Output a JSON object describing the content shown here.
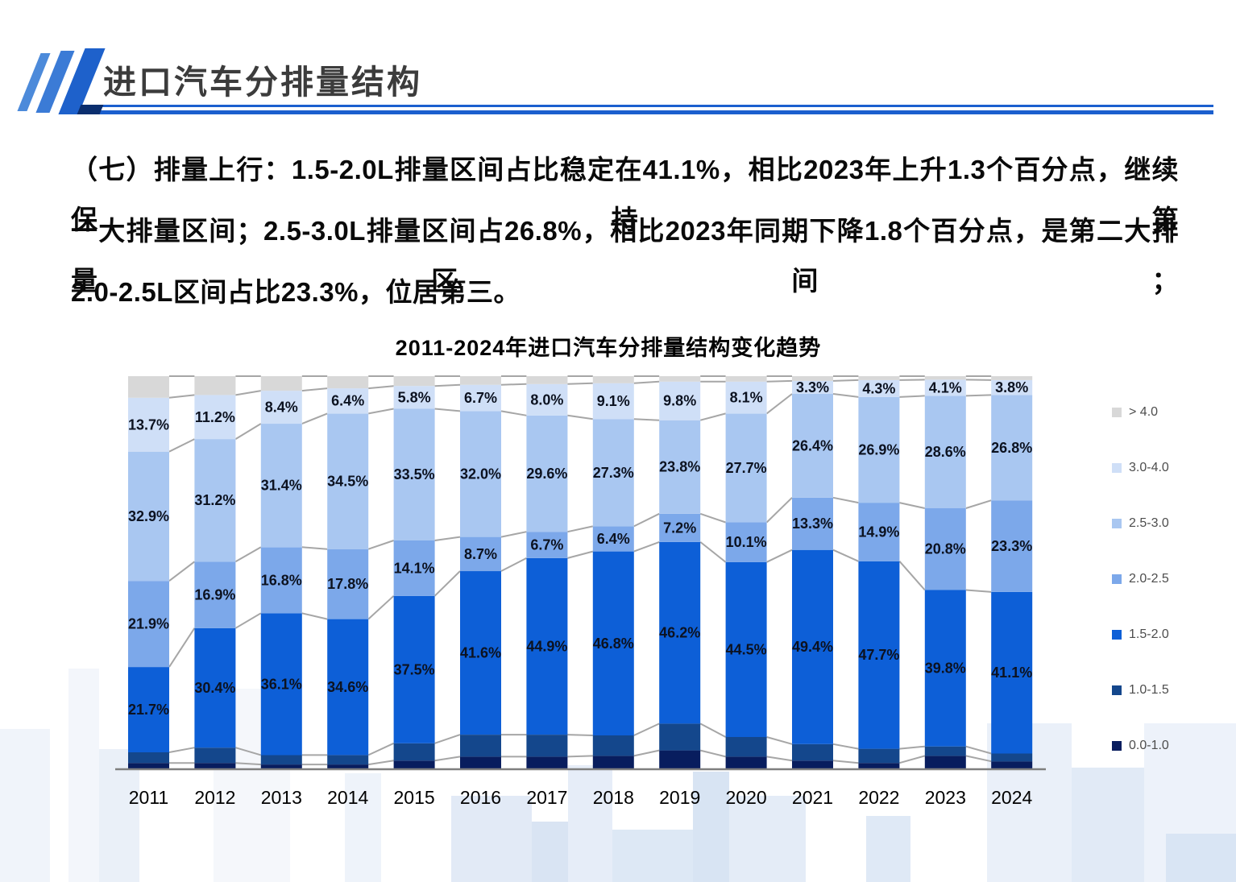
{
  "header": {
    "title": "进口汽车分排量结构"
  },
  "paragraph": {
    "lines": [
      "（七）排量上行：1.5-2.0L排量区间占比稳定在41.1%，相比2023年上升1.3个百分点，继续保持第",
      "一大排量区间；2.5-3.0L排量区间占26.8%，相比2023年同期下降1.8个百分点，是第二大排量区间；",
      "2.0-2.5L区间占比23.3%，位居第三。"
    ]
  },
  "chart_data": {
    "type": "bar",
    "stacked": true,
    "unit": "percent",
    "title": "2011-2024年进口汽车分排量结构变化趋势",
    "categories": [
      "2011",
      "2012",
      "2013",
      "2014",
      "2015",
      "2016",
      "2017",
      "2018",
      "2019",
      "2020",
      "2021",
      "2022",
      "2023",
      "2024"
    ],
    "series": [
      {
        "name": "0.0-1.0",
        "color": "#081d5e",
        "labeled": false,
        "estimated": true,
        "values": [
          1.6,
          1.6,
          1.2,
          1.2,
          2.2,
          3.2,
          3.2,
          3.4,
          4.8,
          3.2,
          2.2,
          1.6,
          3.4,
          2.0
        ]
      },
      {
        "name": "1.0-1.5",
        "color": "#14478c",
        "labeled": false,
        "estimated": true,
        "values": [
          2.7,
          3.9,
          2.4,
          2.4,
          4.4,
          5.6,
          5.6,
          5.2,
          6.8,
          5.0,
          4.2,
          3.6,
          2.4,
          2.0
        ]
      },
      {
        "name": "1.5-2.0",
        "color": "#0d5fd7",
        "labeled": true,
        "values": [
          21.7,
          30.4,
          36.1,
          34.6,
          37.5,
          41.6,
          44.9,
          46.8,
          46.2,
          44.5,
          49.4,
          47.7,
          39.8,
          41.1
        ]
      },
      {
        "name": "2.0-2.5",
        "color": "#7ca8ea",
        "labeled": true,
        "values": [
          21.9,
          16.9,
          16.8,
          17.8,
          14.1,
          8.7,
          6.7,
          6.4,
          7.2,
          10.1,
          13.3,
          14.9,
          20.8,
          23.3
        ]
      },
      {
        "name": "2.5-3.0",
        "color": "#a9c7f1",
        "labeled": true,
        "values": [
          32.9,
          31.2,
          31.4,
          34.5,
          33.5,
          32.0,
          29.6,
          27.3,
          23.8,
          27.7,
          26.4,
          26.9,
          28.6,
          26.8
        ]
      },
      {
        "name": "3.0-4.0",
        "color": "#cfdff7",
        "labeled": true,
        "values": [
          13.7,
          11.2,
          8.4,
          6.4,
          5.8,
          6.7,
          8.0,
          9.1,
          9.8,
          8.1,
          3.3,
          4.3,
          4.1,
          3.8
        ]
      },
      {
        "name": "> 4.0",
        "color": "#d8d8d8",
        "labeled": false,
        "estimated": true,
        "values": [
          5.5,
          4.8,
          3.7,
          3.1,
          2.5,
          2.2,
          2.0,
          1.8,
          1.4,
          1.4,
          1.2,
          1.0,
          0.9,
          1.0
        ]
      }
    ],
    "legend_position": "right",
    "legend_order_top_to_bottom": [
      "> 4.0",
      "3.0-4.0",
      "2.5-3.0",
      "2.0-2.5",
      "1.5-2.0",
      "1.0-1.5",
      "0.0-1.0"
    ],
    "ylim": [
      0,
      100
    ],
    "grid": false,
    "colors": {
      "connector_line": "#a6a6a6",
      "axis_line": "#7f7f7f",
      "bar_label": "#0c1220",
      "year_label": "#000000",
      "accent_rule": "#1b5fce"
    }
  }
}
